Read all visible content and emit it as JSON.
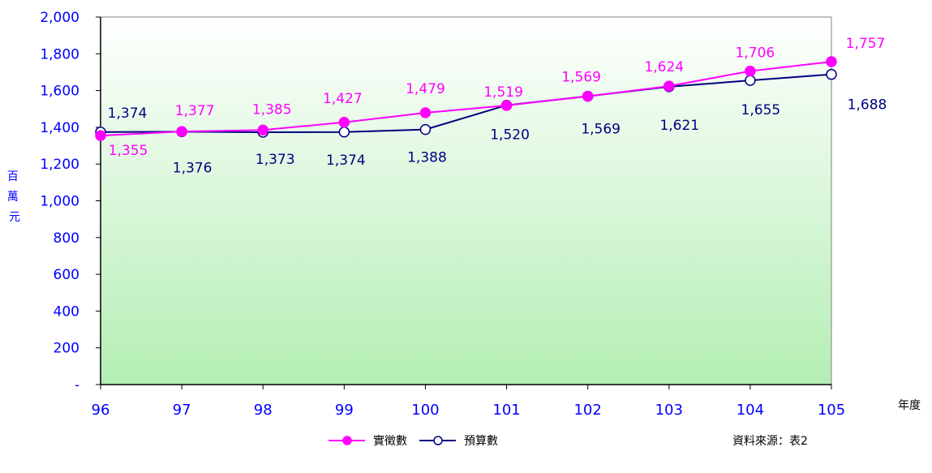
{
  "chart_data": {
    "type": "line",
    "categories": [
      "96",
      "97",
      "98",
      "99",
      "100",
      "101",
      "102",
      "103",
      "104",
      "105"
    ],
    "series": [
      {
        "name": "實徵數",
        "color": "#ff00ff",
        "marker": "filled-circle",
        "values": [
          1355,
          1377,
          1385,
          1427,
          1479,
          1519,
          1569,
          1624,
          1706,
          1757
        ],
        "labels": [
          "1,355",
          "1,377",
          "1,385",
          "1,427",
          "1,479",
          "1,519",
          "1,569",
          "1,624",
          "1,706",
          "1,757"
        ]
      },
      {
        "name": "預算數",
        "color": "#000080",
        "marker": "hollow-circle",
        "values": [
          1374,
          1376,
          1373,
          1374,
          1388,
          1520,
          1569,
          1621,
          1655,
          1688
        ],
        "labels": [
          "1,374",
          "1,376",
          "1,373",
          "1,374",
          "1,388",
          "1,520",
          "1,569",
          "1,621",
          "1,655",
          "1,688"
        ]
      }
    ],
    "ylim": [
      0,
      2000
    ],
    "yticks": [
      0,
      200,
      400,
      600,
      800,
      1000,
      1200,
      1400,
      1600,
      1800,
      2000
    ],
    "ytick_labels": [
      "-",
      "200",
      "400",
      "600",
      "800",
      "1,000",
      "1,200",
      "1,400",
      "1,600",
      "1,800",
      "2,000"
    ],
    "ylabel": "百萬元",
    "xlabel": "年度",
    "legend_position": "bottom",
    "background": "gradient-white-to-light-green",
    "grid": false
  },
  "source_note": "資料來源：表2"
}
